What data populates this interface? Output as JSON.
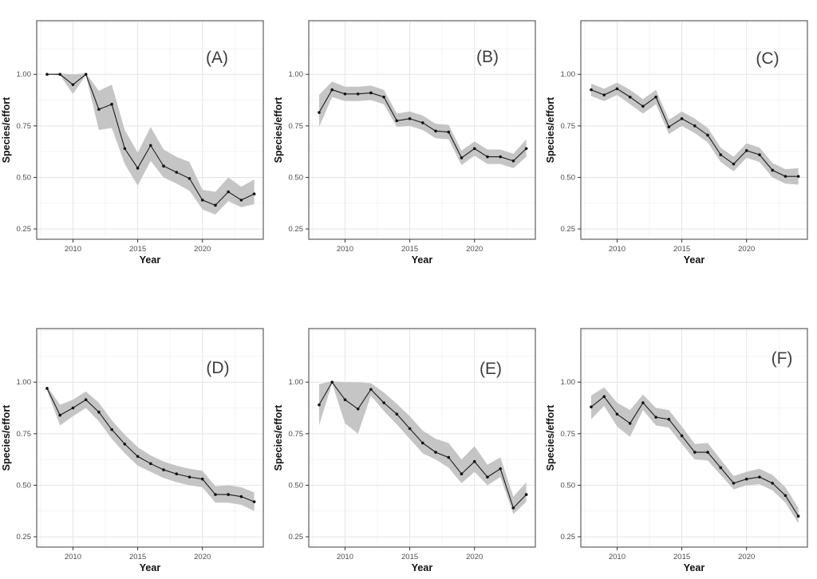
{
  "figure": {
    "background": "#ffffff",
    "description": "Six-panel line chart figure (A-F), species per effort trends over years with grey confidence ribbons"
  },
  "style": {
    "line_color": "#1b1b1b",
    "point_color": "#111111",
    "ribbon_color": "#c2c2c2",
    "grid_major_color": "#e4e4e4",
    "grid_minor_color": "#f0f0f0",
    "panel_border_color": "#4f4f4f",
    "tick_mark_color": "#333333",
    "tick_label_color": "#4d4d4d",
    "axis_title_color": "#111111",
    "panel_label_color": "#3d3d3d"
  },
  "chart_data": {
    "type": "line",
    "x_label": "Year",
    "y_label": "Species/effort",
    "x": [
      2008,
      2009,
      2010,
      2011,
      2012,
      2013,
      2014,
      2015,
      2016,
      2017,
      2018,
      2019,
      2020,
      2021,
      2022,
      2023,
      2024
    ],
    "xticks": [
      2010,
      2015,
      2020
    ],
    "yticks": [
      0.25,
      0.5,
      0.75,
      1.0
    ],
    "xlim": [
      2007.2,
      2024.7
    ],
    "ylim": [
      0.2,
      1.26
    ],
    "grid": true,
    "legend": "none",
    "panels": [
      {
        "label": "(A)",
        "values": [
          1.0,
          1.0,
          0.95,
          1.0,
          0.83,
          0.855,
          0.64,
          0.545,
          0.655,
          0.555,
          0.525,
          0.495,
          0.39,
          0.365,
          0.43,
          0.39,
          0.42
        ],
        "ribbon_lower": [
          1.0,
          0.995,
          0.905,
          0.995,
          0.73,
          0.74,
          0.565,
          0.46,
          0.58,
          0.5,
          0.47,
          0.435,
          0.345,
          0.32,
          0.385,
          0.355,
          0.37
        ],
        "ribbon_upper": [
          1.0,
          1.005,
          1.0,
          1.005,
          0.92,
          0.95,
          0.73,
          0.62,
          0.745,
          0.635,
          0.6,
          0.575,
          0.44,
          0.43,
          0.5,
          0.455,
          0.49
        ]
      },
      {
        "label": "(B)",
        "values": [
          0.815,
          0.925,
          0.905,
          0.905,
          0.91,
          0.89,
          0.775,
          0.785,
          0.765,
          0.725,
          0.72,
          0.595,
          0.64,
          0.6,
          0.6,
          0.58,
          0.64
        ],
        "ribbon_lower": [
          0.745,
          0.89,
          0.87,
          0.87,
          0.875,
          0.855,
          0.745,
          0.75,
          0.73,
          0.69,
          0.685,
          0.56,
          0.605,
          0.565,
          0.565,
          0.545,
          0.6
        ],
        "ribbon_upper": [
          0.9,
          0.965,
          0.94,
          0.94,
          0.945,
          0.925,
          0.81,
          0.82,
          0.8,
          0.76,
          0.755,
          0.63,
          0.675,
          0.635,
          0.635,
          0.615,
          0.685
        ]
      },
      {
        "label": "(C)",
        "values": [
          0.925,
          0.9,
          0.93,
          0.89,
          0.845,
          0.89,
          0.745,
          0.785,
          0.75,
          0.705,
          0.61,
          0.565,
          0.63,
          0.61,
          0.535,
          0.505,
          0.505
        ],
        "ribbon_lower": [
          0.895,
          0.87,
          0.9,
          0.855,
          0.81,
          0.855,
          0.71,
          0.75,
          0.715,
          0.67,
          0.575,
          0.53,
          0.595,
          0.575,
          0.5,
          0.47,
          0.465
        ],
        "ribbon_upper": [
          0.955,
          0.93,
          0.96,
          0.925,
          0.88,
          0.925,
          0.78,
          0.82,
          0.785,
          0.74,
          0.645,
          0.6,
          0.665,
          0.645,
          0.57,
          0.54,
          0.545
        ]
      },
      {
        "label": "(D)",
        "values": [
          0.97,
          0.84,
          0.875,
          0.915,
          0.855,
          0.77,
          0.7,
          0.64,
          0.605,
          0.575,
          0.555,
          0.54,
          0.53,
          0.455,
          0.455,
          0.445,
          0.42
        ],
        "ribbon_lower": [
          0.96,
          0.79,
          0.835,
          0.875,
          0.81,
          0.725,
          0.655,
          0.595,
          0.565,
          0.535,
          0.515,
          0.5,
          0.49,
          0.415,
          0.415,
          0.405,
          0.375
        ],
        "ribbon_upper": [
          0.98,
          0.89,
          0.915,
          0.955,
          0.9,
          0.815,
          0.745,
          0.685,
          0.645,
          0.615,
          0.595,
          0.58,
          0.57,
          0.495,
          0.5,
          0.49,
          0.465
        ]
      },
      {
        "label": "(E)",
        "values": [
          0.89,
          1.0,
          0.915,
          0.87,
          0.965,
          0.9,
          0.845,
          0.775,
          0.705,
          0.66,
          0.635,
          0.555,
          0.615,
          0.54,
          0.58,
          0.39,
          0.455
        ],
        "ribbon_lower": [
          0.79,
          0.995,
          0.8,
          0.75,
          0.935,
          0.86,
          0.795,
          0.725,
          0.655,
          0.625,
          0.585,
          0.51,
          0.565,
          0.5,
          0.54,
          0.36,
          0.42
        ],
        "ribbon_upper": [
          0.99,
          1.005,
          1.0,
          1.0,
          0.995,
          0.95,
          0.895,
          0.835,
          0.765,
          0.725,
          0.705,
          0.625,
          0.69,
          0.6,
          0.635,
          0.445,
          0.515
        ]
      },
      {
        "label": "(F)",
        "values": [
          0.88,
          0.93,
          0.845,
          0.8,
          0.9,
          0.83,
          0.82,
          0.74,
          0.66,
          0.66,
          0.585,
          0.51,
          0.53,
          0.54,
          0.51,
          0.45,
          0.35
        ],
        "ribbon_lower": [
          0.82,
          0.885,
          0.785,
          0.735,
          0.865,
          0.79,
          0.78,
          0.7,
          0.625,
          0.62,
          0.55,
          0.48,
          0.5,
          0.505,
          0.475,
          0.415,
          0.315
        ],
        "ribbon_upper": [
          0.935,
          0.975,
          0.9,
          0.865,
          0.94,
          0.875,
          0.865,
          0.785,
          0.7,
          0.705,
          0.625,
          0.545,
          0.565,
          0.58,
          0.55,
          0.49,
          0.39
        ]
      }
    ]
  }
}
